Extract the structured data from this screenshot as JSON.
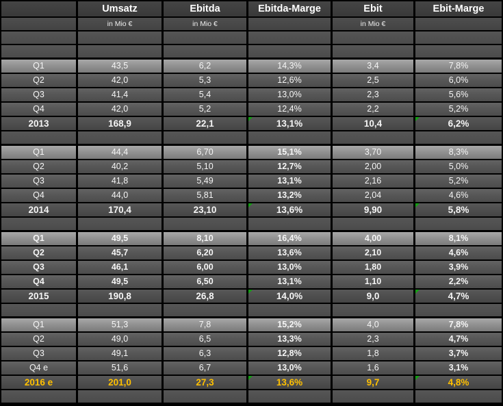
{
  "colors": {
    "background": "#000000",
    "header_bg": "#3E3E3E",
    "quarter_row_bg": "#565656",
    "q1_row_bg": "#909090",
    "year_row_bg": "#4E4E4E",
    "text": "#FFFFFF",
    "forecast_text": "#FFC000",
    "marker_green": "#13A013"
  },
  "table": {
    "column_headers": [
      "",
      "Umsatz",
      "Ebitda",
      "Ebitda-Marge",
      "Ebit",
      "Ebit-Marge"
    ],
    "unit_label": "in Mio €",
    "rows": [
      {
        "type": "header",
        "cells": [
          "",
          "Umsatz",
          "Ebitda",
          "Ebitda-Marge",
          "Ebit",
          "Ebit-Marge"
        ]
      },
      {
        "type": "subheader",
        "cells": [
          "",
          "in Mio €",
          "in Mio €",
          "",
          "in Mio €",
          ""
        ]
      },
      {
        "type": "empty"
      },
      {
        "type": "empty"
      },
      {
        "type": "q1",
        "cells": [
          "Q1",
          "43,5",
          "6,2",
          "14,3%",
          "3,4",
          "7,8%"
        ]
      },
      {
        "type": "q",
        "cells": [
          "Q2",
          "42,0",
          "5,3",
          "12,6%",
          "2,5",
          "6,0%"
        ]
      },
      {
        "type": "q",
        "cells": [
          "Q3",
          "41,4",
          "5,4",
          "13,0%",
          "2,3",
          "5,6%"
        ]
      },
      {
        "type": "q",
        "cells": [
          "Q4",
          "42,0",
          "5,2",
          "12,4%",
          "2,2",
          "5,2%"
        ]
      },
      {
        "type": "year",
        "cells": [
          "2013",
          "168,9",
          "22,1",
          "13,1%",
          "10,4",
          "6,2%"
        ],
        "markers": [
          3,
          5
        ]
      },
      {
        "type": "empty"
      },
      {
        "type": "q1",
        "cells": [
          "Q1",
          "44,4",
          "6,70",
          "15,1%",
          "3,70",
          "8,3%"
        ],
        "bold": [
          3
        ]
      },
      {
        "type": "q",
        "cells": [
          "Q2",
          "40,2",
          "5,10",
          "12,7%",
          "2,00",
          "5,0%"
        ],
        "bold": [
          3
        ]
      },
      {
        "type": "q",
        "cells": [
          "Q3",
          "41,8",
          "5,49",
          "13,1%",
          "2,16",
          "5,2%"
        ],
        "bold": [
          3
        ]
      },
      {
        "type": "q",
        "cells": [
          "Q4",
          "44,0",
          "5,81",
          "13,2%",
          "2,04",
          "4,6%"
        ],
        "bold": [
          3
        ]
      },
      {
        "type": "year",
        "cells": [
          "2014",
          "170,4",
          "23,10",
          "13,6%",
          "9,90",
          "5,8%"
        ],
        "markers": [
          3,
          5
        ]
      },
      {
        "type": "empty"
      },
      {
        "type": "q1",
        "cells": [
          "Q1",
          "49,5",
          "8,10",
          "16,4%",
          "4,00",
          "8,1%"
        ],
        "bold": "all"
      },
      {
        "type": "q",
        "cells": [
          "Q2",
          "45,7",
          "6,20",
          "13,6%",
          "2,10",
          "4,6%"
        ],
        "bold": "all"
      },
      {
        "type": "q",
        "cells": [
          "Q3",
          "46,1",
          "6,00",
          "13,0%",
          "1,80",
          "3,9%"
        ],
        "bold": "all"
      },
      {
        "type": "q",
        "cells": [
          "Q4",
          "49,5",
          "6,50",
          "13,1%",
          "1,10",
          "2,2%"
        ],
        "bold": "all"
      },
      {
        "type": "year",
        "cells": [
          "2015",
          "190,8",
          "26,8",
          "14,0%",
          "9,0",
          "4,7%"
        ],
        "markers": [
          3,
          5
        ]
      },
      {
        "type": "empty"
      },
      {
        "type": "q1",
        "cells": [
          "Q1",
          "51,3",
          "7,8",
          "15,2%",
          "4,0",
          "7,8%"
        ],
        "bold": [
          3,
          5
        ]
      },
      {
        "type": "q",
        "cells": [
          "Q2",
          "49,0",
          "6,5",
          "13,3%",
          "2,3",
          "4,7%"
        ],
        "bold": [
          3,
          5
        ]
      },
      {
        "type": "q",
        "cells": [
          "Q3",
          "49,1",
          "6,3",
          "12,8%",
          "1,8",
          "3,7%"
        ],
        "bold": [
          3,
          5
        ]
      },
      {
        "type": "q",
        "cells": [
          "Q4 e",
          "51,6",
          "6,7",
          "13,0%",
          "1,6",
          "3,1%"
        ],
        "bold": [
          3,
          5
        ]
      },
      {
        "type": "year_forecast",
        "cells": [
          "2016 e",
          "201,0",
          "27,3",
          "13,6%",
          "9,7",
          "4,8%"
        ],
        "markers": [
          3,
          5
        ]
      },
      {
        "type": "empty"
      }
    ]
  }
}
